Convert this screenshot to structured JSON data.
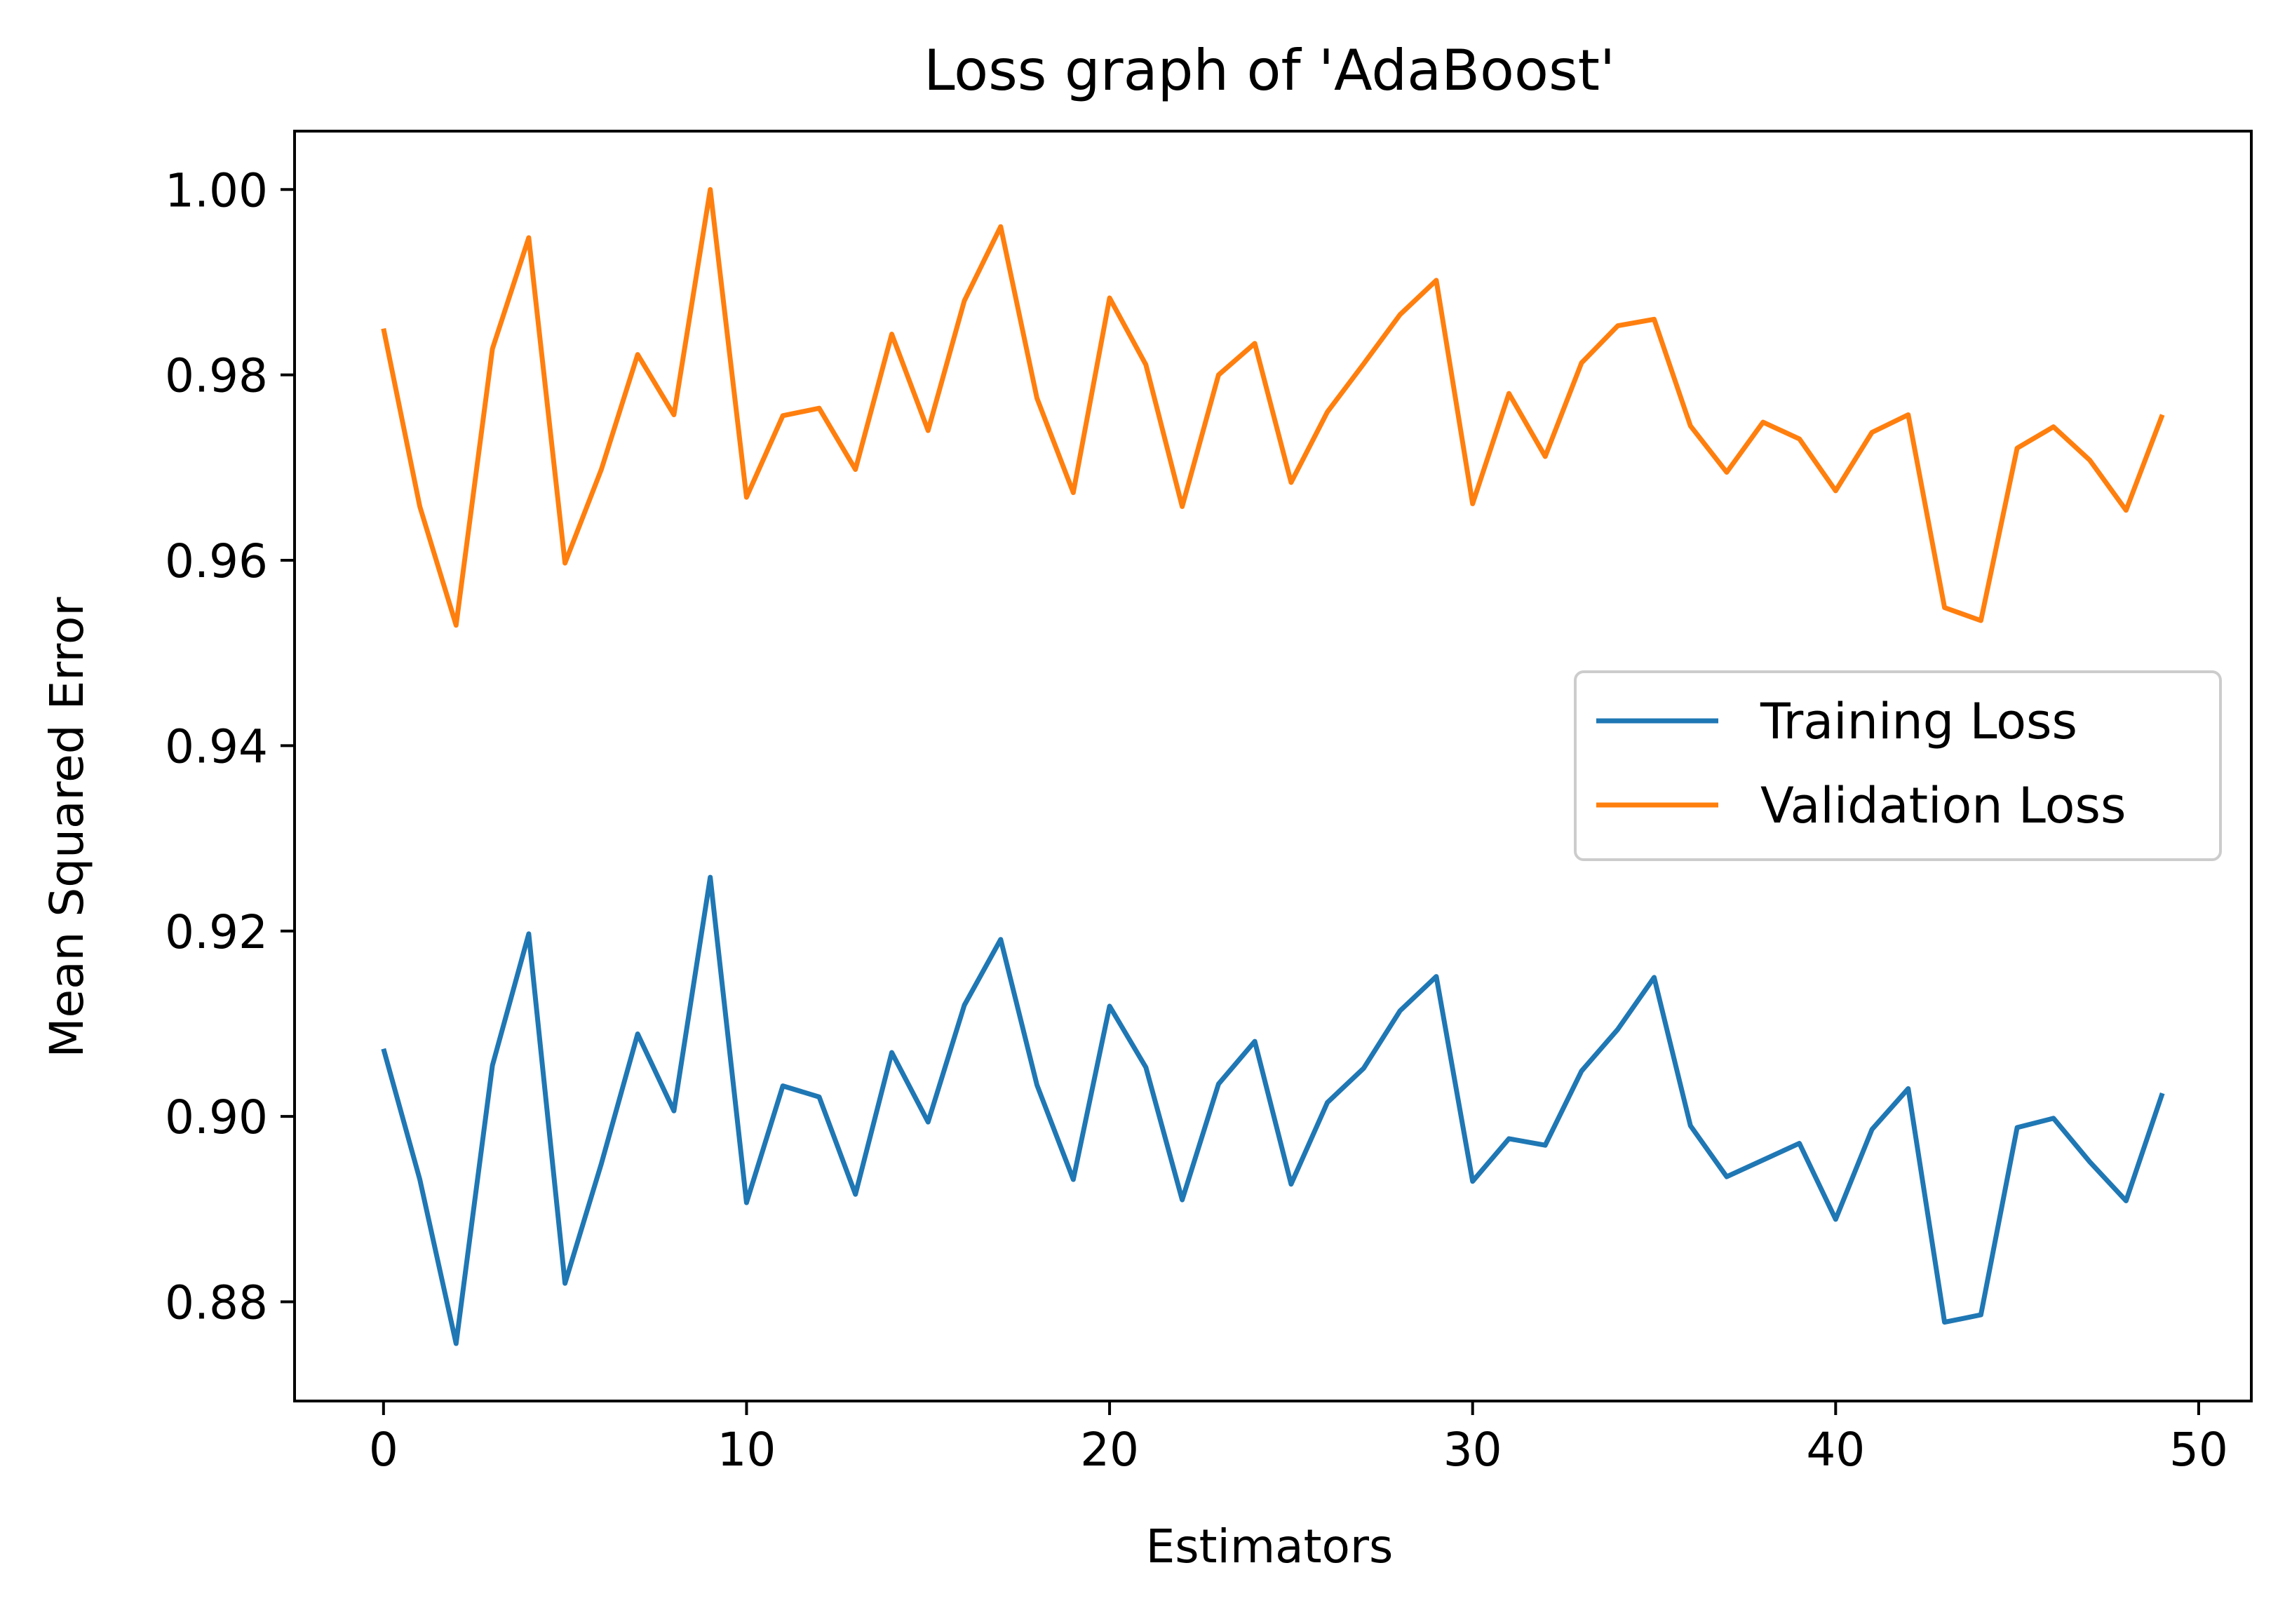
{
  "chart_data": {
    "type": "line",
    "title": "Loss graph of 'AdaBoost'",
    "xlabel": "Estimators",
    "ylabel": "Mean Squared Error",
    "xlim": [
      -2.45,
      51.45
    ],
    "ylim": [
      0.8693,
      1.0063
    ],
    "xticks": [
      0,
      10,
      20,
      30,
      40,
      50
    ],
    "xtick_labels": [
      "0",
      "10",
      "20",
      "30",
      "40",
      "50"
    ],
    "yticks": [
      0.88,
      0.9,
      0.92,
      0.94,
      0.96,
      0.98,
      1.0
    ],
    "ytick_labels": [
      "0.88",
      "0.90",
      "0.92",
      "0.94",
      "0.96",
      "0.98",
      "1.00"
    ],
    "grid": false,
    "legend_position": "center-right",
    "x": [
      0,
      1,
      2,
      3,
      4,
      5,
      6,
      7,
      8,
      9,
      10,
      11,
      12,
      13,
      14,
      15,
      16,
      17,
      18,
      19,
      20,
      21,
      22,
      23,
      24,
      25,
      26,
      27,
      28,
      29,
      30,
      31,
      32,
      33,
      34,
      35,
      36,
      37,
      38,
      39,
      40,
      41,
      42,
      43,
      44,
      45,
      46,
      47,
      48,
      49
    ],
    "series": [
      {
        "name": "Training Loss",
        "color": "#1f77b4",
        "values": [
          0.9073,
          0.8932,
          0.8755,
          0.9055,
          0.9197,
          0.882,
          0.8949,
          0.9089,
          0.9006,
          0.9258,
          0.8907,
          0.9033,
          0.9021,
          0.8916,
          0.9069,
          0.8994,
          0.912,
          0.9191,
          0.9034,
          0.8932,
          0.9119,
          0.9053,
          0.891,
          0.9035,
          0.9081,
          0.8927,
          0.9015,
          0.9052,
          0.9114,
          0.9151,
          0.893,
          0.8976,
          0.8969,
          0.9049,
          0.9094,
          0.915,
          0.899,
          0.8935,
          0.8953,
          0.8971,
          0.8889,
          0.8986,
          0.903,
          0.8778,
          0.8786,
          0.8988,
          0.8998,
          0.8951,
          0.8909,
          0.9025
        ]
      },
      {
        "name": "Validation Loss",
        "color": "#ff7f0e",
        "values": [
          0.985,
          0.9658,
          0.953,
          0.9828,
          0.9948,
          0.9597,
          0.9698,
          0.9822,
          0.9757,
          1.0,
          0.9668,
          0.9756,
          0.9764,
          0.9698,
          0.9844,
          0.974,
          0.988,
          0.996,
          0.9775,
          0.9673,
          0.9883,
          0.9811,
          0.9658,
          0.98,
          0.9834,
          0.9684,
          0.976,
          0.9812,
          0.9865,
          0.9902,
          0.9661,
          0.978,
          0.9712,
          0.9813,
          0.9853,
          0.986,
          0.9745,
          0.9695,
          0.9749,
          0.9731,
          0.9675,
          0.9738,
          0.9757,
          0.9549,
          0.9535,
          0.9721,
          0.9744,
          0.9708,
          0.9654,
          0.9757
        ]
      }
    ]
  }
}
